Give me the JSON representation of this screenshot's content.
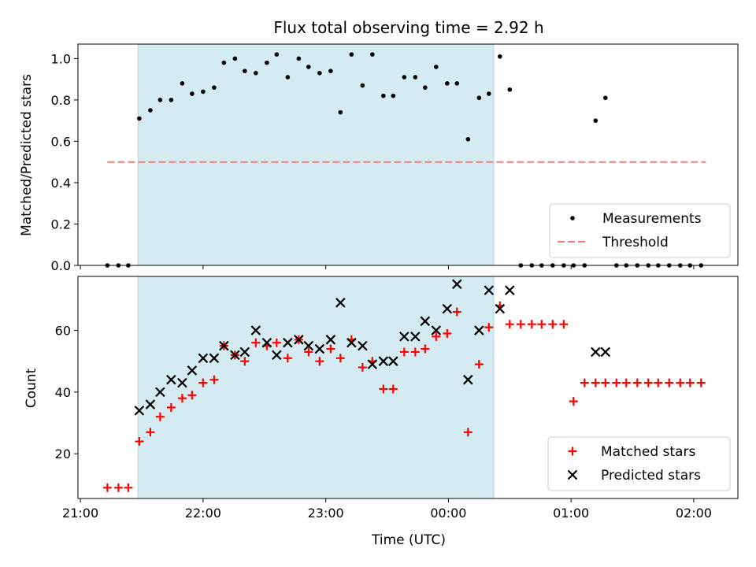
{
  "chart_data": {
    "title": "Flux total observing time = 2.92 h",
    "xlabel": "Time (UTC)",
    "x_ticks": [
      "21:00",
      "22:00",
      "23:00",
      "00:00",
      "01:00",
      "02:00"
    ],
    "x_tick_hours": [
      21,
      22,
      23,
      24,
      25,
      26
    ],
    "x_range_hours": [
      20.98,
      26.36
    ],
    "shaded_region_hours": [
      21.47,
      24.37
    ],
    "shade_color": "#d4ebf1",
    "top": {
      "type": "scatter",
      "ylabel": "Matched/Predicted stars",
      "ylim": [
        0,
        1.07
      ],
      "y_ticks": [
        0.0,
        0.2,
        0.4,
        0.6,
        0.8,
        1.0
      ],
      "y_tick_labels": [
        "0.0",
        "0.2",
        "0.4",
        "0.6",
        "0.8",
        "1.0"
      ],
      "legend": [
        {
          "label": "Measurements",
          "marker": "dot",
          "color": "#000000"
        },
        {
          "label": "Threshold",
          "marker": "dashed-line",
          "color": "#f08080"
        }
      ],
      "legend_position": "lower-right",
      "threshold": {
        "value": 0.5,
        "x_start_hours": 21.22,
        "x_end_hours": 26.1
      },
      "measurements": {
        "x": [
          21.22,
          21.31,
          21.39,
          21.48,
          21.57,
          21.65,
          21.74,
          21.83,
          21.91,
          22.0,
          22.09,
          22.17,
          22.26,
          22.34,
          22.43,
          22.52,
          22.6,
          22.69,
          22.78,
          22.86,
          22.95,
          23.04,
          23.12,
          23.21,
          23.3,
          23.38,
          23.47,
          23.55,
          23.64,
          23.73,
          23.81,
          23.9,
          23.99,
          24.07,
          24.16,
          24.25,
          24.33,
          24.42,
          24.5,
          24.59,
          24.68,
          24.76,
          24.85,
          24.94,
          25.02,
          25.11,
          25.2,
          25.28,
          25.37,
          25.45,
          25.54,
          25.63,
          25.71,
          25.8,
          25.89,
          25.97,
          26.06
        ],
        "y": [
          0.0,
          0.0,
          0.0,
          0.71,
          0.75,
          0.8,
          0.8,
          0.88,
          0.83,
          0.84,
          0.86,
          0.98,
          1.0,
          0.94,
          0.93,
          0.98,
          1.02,
          0.91,
          1.0,
          0.96,
          0.93,
          0.94,
          0.74,
          1.02,
          0.87,
          1.02,
          0.82,
          0.82,
          0.91,
          0.91,
          0.86,
          0.96,
          0.88,
          0.88,
          0.61,
          0.81,
          0.83,
          1.01,
          0.85,
          0.0,
          0.0,
          0.0,
          0.0,
          0.0,
          0.0,
          0.0,
          0.7,
          0.81,
          0.0,
          0.0,
          0.0,
          0.0,
          0.0,
          0.0,
          0.0,
          0.0,
          0.0
        ]
      }
    },
    "bottom": {
      "type": "scatter",
      "ylabel": "Count",
      "ylim": [
        5.5,
        77.5
      ],
      "y_ticks": [
        20,
        40,
        60
      ],
      "y_tick_labels": [
        "20",
        "40",
        "60"
      ],
      "legend": [
        {
          "label": "Matched stars",
          "marker": "plus",
          "color": "#ff0000"
        },
        {
          "label": "Predicted stars",
          "marker": "x",
          "color": "#000000"
        }
      ],
      "legend_position": "lower-right",
      "matched": {
        "x": [
          21.22,
          21.31,
          21.39,
          21.48,
          21.57,
          21.65,
          21.74,
          21.83,
          21.91,
          22.0,
          22.09,
          22.17,
          22.26,
          22.34,
          22.43,
          22.52,
          22.6,
          22.69,
          22.78,
          22.86,
          22.95,
          23.04,
          23.12,
          23.21,
          23.3,
          23.38,
          23.47,
          23.55,
          23.64,
          23.73,
          23.81,
          23.9,
          23.99,
          24.07,
          24.16,
          24.25,
          24.33,
          24.42,
          24.5,
          24.59,
          24.68,
          24.76,
          24.85,
          24.94,
          25.02,
          25.11,
          25.2,
          25.28,
          25.37,
          25.45,
          25.54,
          25.63,
          25.71,
          25.8,
          25.89,
          25.97,
          26.06
        ],
        "y": [
          9,
          9,
          9,
          24,
          27,
          32,
          35,
          38,
          39,
          43,
          44,
          55,
          52,
          50,
          56,
          55,
          56,
          51,
          57,
          53,
          50,
          54,
          51,
          57,
          48,
          50,
          41,
          41,
          53,
          53,
          54,
          58,
          59,
          66,
          27,
          49,
          61,
          68,
          62,
          62,
          62,
          62,
          62,
          62,
          37,
          43,
          43,
          43,
          43,
          43,
          43,
          43,
          43,
          43,
          43,
          43,
          43
        ]
      },
      "predicted": {
        "x": [
          21.48,
          21.57,
          21.65,
          21.74,
          21.83,
          21.91,
          22.0,
          22.09,
          22.17,
          22.26,
          22.34,
          22.43,
          22.52,
          22.6,
          22.69,
          22.78,
          22.86,
          22.95,
          23.04,
          23.12,
          23.21,
          23.3,
          23.38,
          23.47,
          23.55,
          23.64,
          23.73,
          23.81,
          23.9,
          23.99,
          24.07,
          24.16,
          24.25,
          24.33,
          24.42,
          24.5,
          25.2,
          25.28
        ],
        "y": [
          34,
          36,
          40,
          44,
          43,
          47,
          51,
          51,
          55,
          52,
          53,
          60,
          56,
          52,
          56,
          57,
          55,
          54,
          57,
          69,
          56,
          55,
          49,
          50,
          50,
          58,
          58,
          63,
          60,
          67,
          75,
          44,
          60,
          73,
          67,
          73,
          53,
          53
        ]
      }
    }
  }
}
